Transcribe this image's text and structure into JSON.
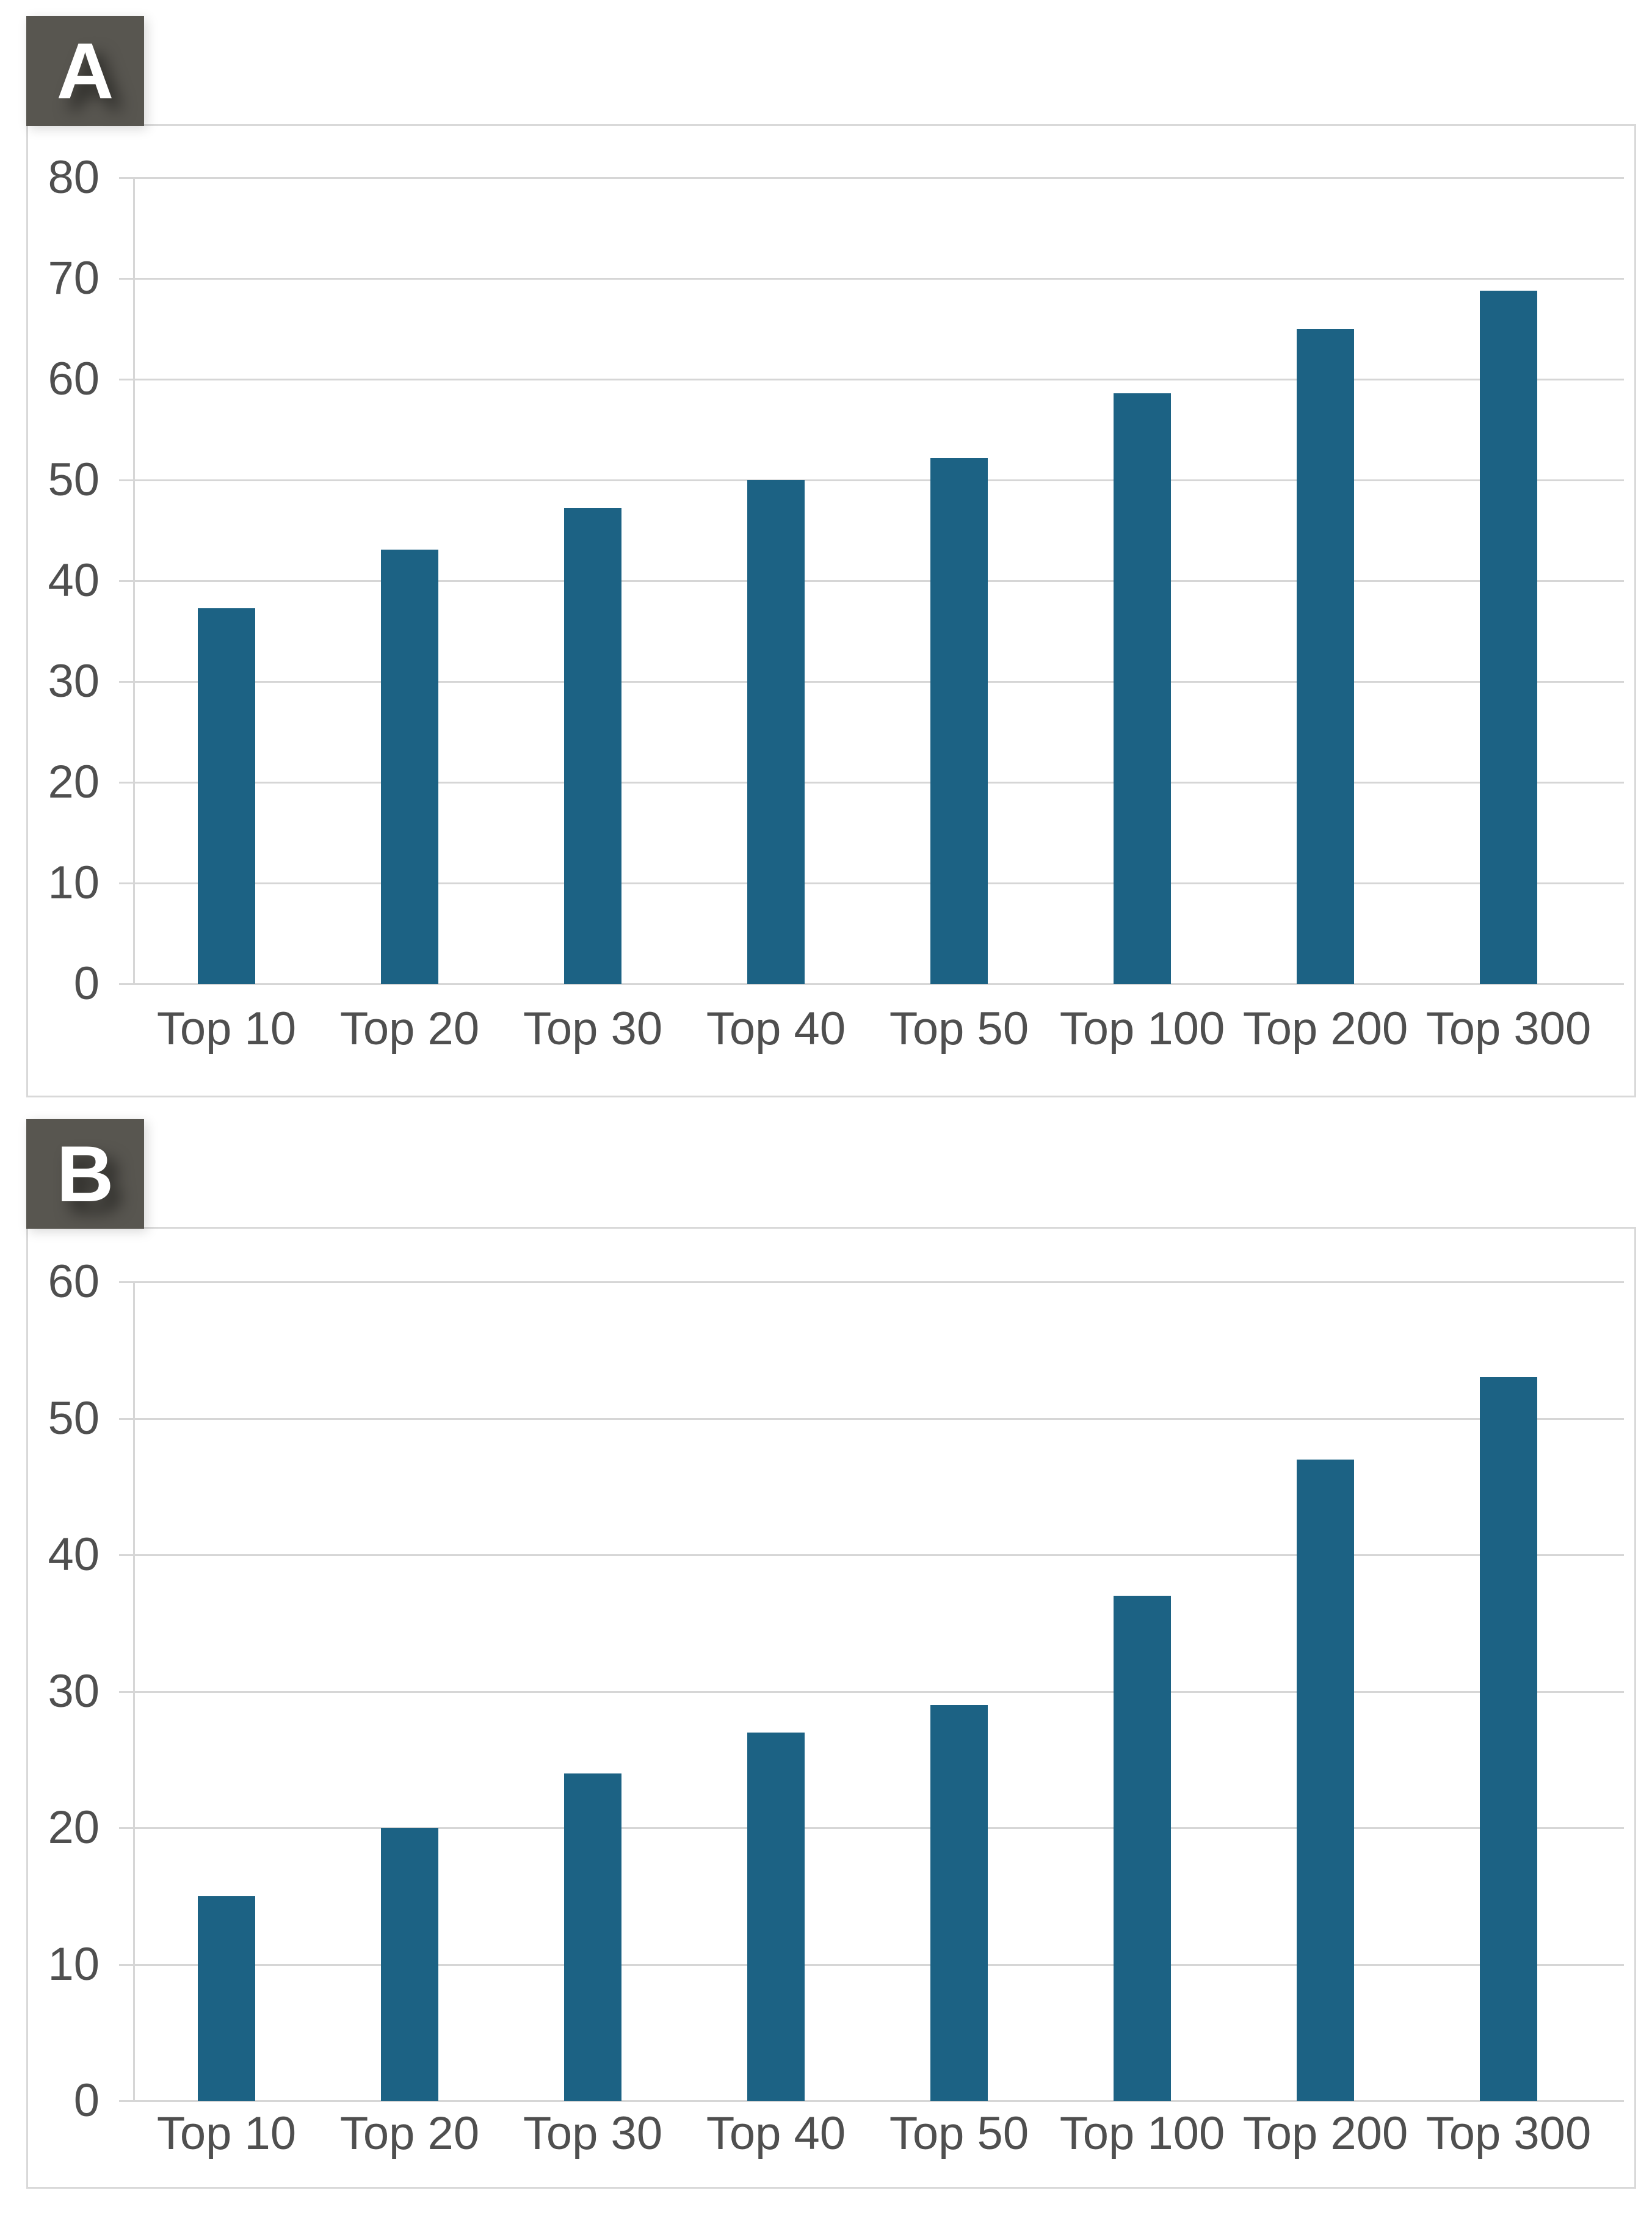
{
  "colors": {
    "background": "#ffffff",
    "bar": "#1c6284",
    "gridline": "#d6d6d6",
    "frame_border": "#d9d9d9",
    "tick_text": "#4f4f4f",
    "badge_background": "#585650",
    "badge_text": "#ffffff"
  },
  "chart_data": [
    {
      "type": "bar",
      "panel_label": "A",
      "title": "",
      "xlabel": "",
      "ylabel": "",
      "categories": [
        "Top 10",
        "Top 20",
        "Top 30",
        "Top 40",
        "Top 50",
        "Top 100",
        "Top 200",
        "Top 300"
      ],
      "values": [
        37.3,
        43.1,
        47.2,
        50.0,
        52.2,
        58.6,
        65.0,
        68.8
      ],
      "ylim": [
        0,
        80
      ],
      "y_tick_step": 10,
      "y_tick_labels": [
        "0",
        "10",
        "20",
        "30",
        "40",
        "50",
        "60",
        "70",
        "80"
      ],
      "grid": "horizontal",
      "legend": "none",
      "bar_color": "#1c6284"
    },
    {
      "type": "bar",
      "panel_label": "B",
      "title": "",
      "xlabel": "",
      "ylabel": "",
      "categories": [
        "Top 10",
        "Top 20",
        "Top 30",
        "Top 40",
        "Top 50",
        "Top 100",
        "Top 200",
        "Top 300"
      ],
      "values": [
        15,
        20,
        24,
        27,
        29,
        37,
        47,
        53
      ],
      "ylim": [
        0,
        60
      ],
      "y_tick_step": 10,
      "y_tick_labels": [
        "0",
        "10",
        "20",
        "30",
        "40",
        "50",
        "60"
      ],
      "grid": "horizontal",
      "legend": "none",
      "bar_color": "#1c6284"
    }
  ]
}
